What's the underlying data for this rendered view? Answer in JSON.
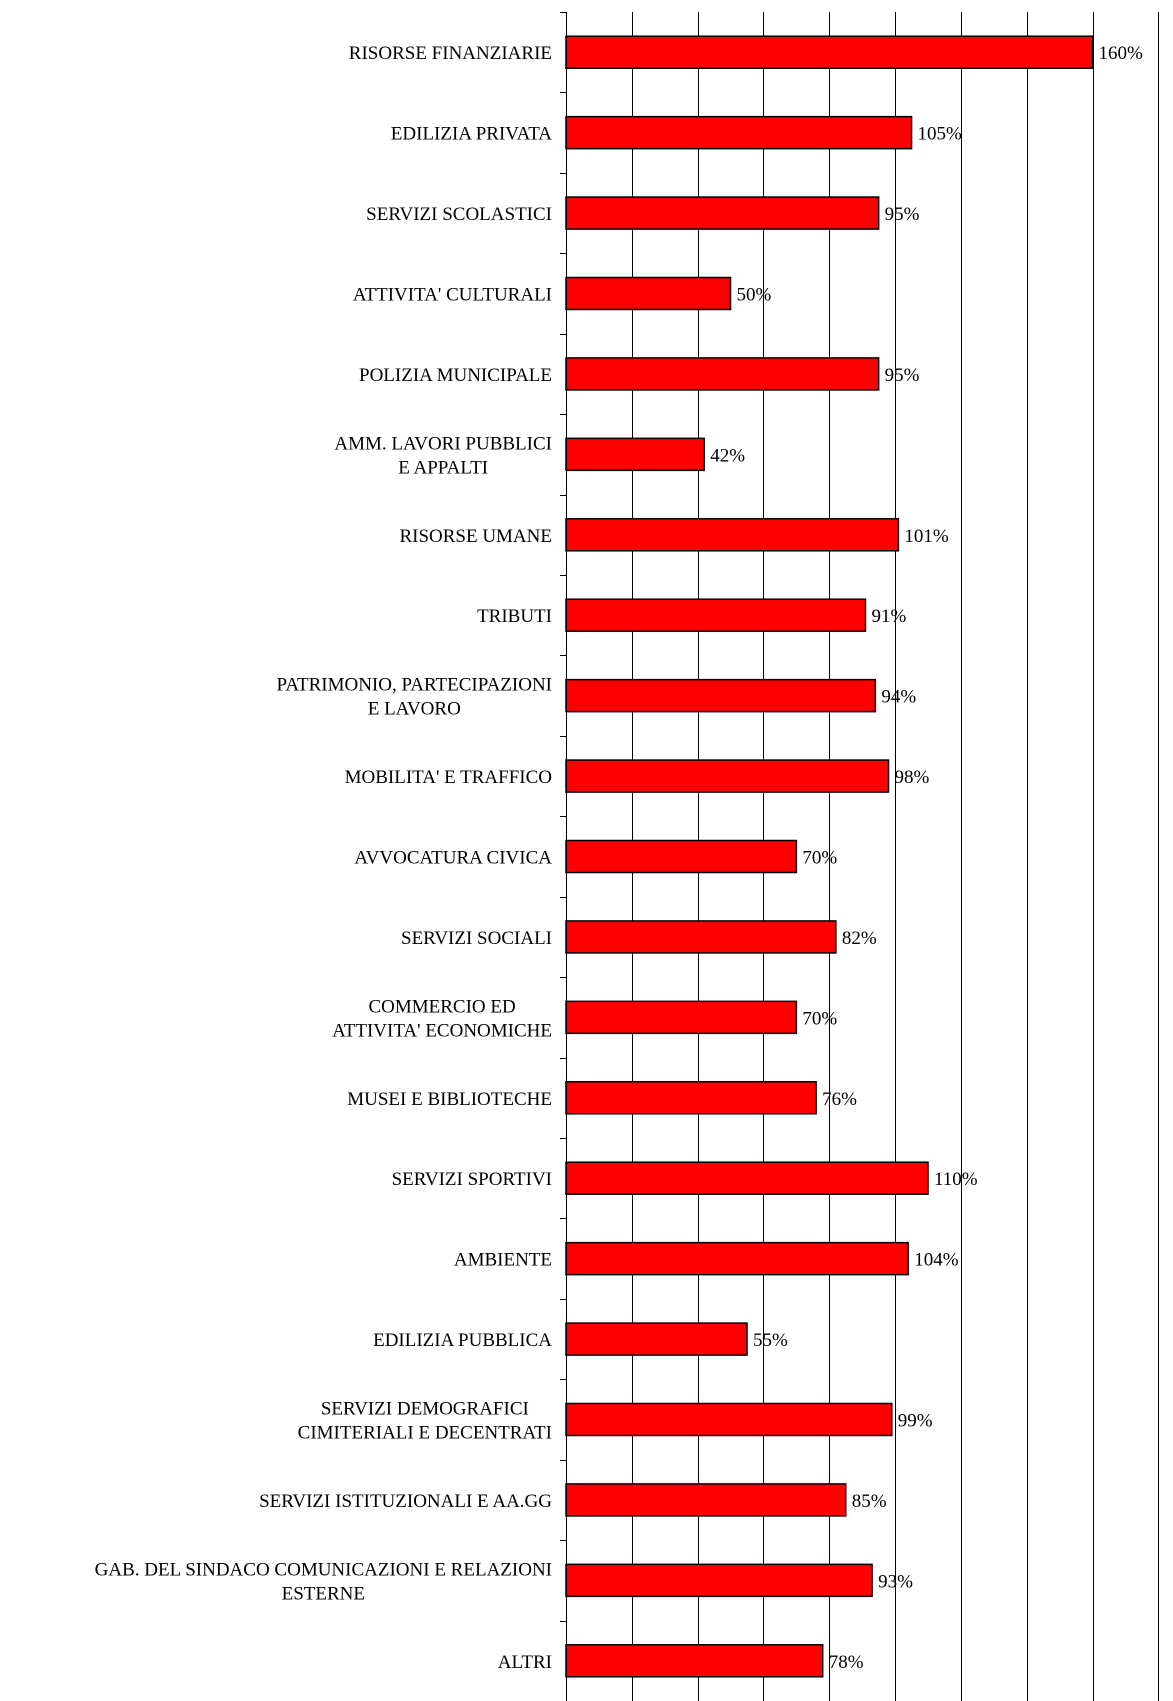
{
  "chart_data": {
    "type": "bar",
    "orientation": "horizontal",
    "categories": [
      [
        "RISORSE FINANZIARIE"
      ],
      [
        "EDILIZIA PRIVATA"
      ],
      [
        "SERVIZI SCOLASTICI"
      ],
      [
        "ATTIVITA' CULTURALI"
      ],
      [
        "POLIZIA MUNICIPALE"
      ],
      [
        "AMM. LAVORI PUBBLICI",
        "E APPALTI"
      ],
      [
        "RISORSE UMANE"
      ],
      [
        "TRIBUTI"
      ],
      [
        "PATRIMONIO, PARTECIPAZIONI",
        "E LAVORO"
      ],
      [
        "MOBILITA' E TRAFFICO"
      ],
      [
        "AVVOCATURA CIVICA"
      ],
      [
        "SERVIZI SOCIALI"
      ],
      [
        "COMMERCIO ED",
        "ATTIVITA' ECONOMICHE"
      ],
      [
        "MUSEI E BIBLIOTECHE"
      ],
      [
        "SERVIZI SPORTIVI"
      ],
      [
        "AMBIENTE"
      ],
      [
        "EDILIZIA PUBBLICA"
      ],
      [
        "SERVIZI DEMOGRAFICI",
        "CIMITERIALI E DECENTRATI"
      ],
      [
        "SERVIZI ISTITUZIONALI E AA.GG"
      ],
      [
        "GAB. DEL SINDACO COMUNICAZIONI E RELAZIONI",
        "ESTERNE"
      ],
      [
        "ALTRI"
      ]
    ],
    "values": [
      160,
      105,
      95,
      50,
      95,
      42,
      101,
      91,
      94,
      98,
      70,
      82,
      70,
      76,
      110,
      104,
      55,
      99,
      85,
      93,
      78
    ],
    "value_labels": [
      "160%",
      "105%",
      "95%",
      "50%",
      "95%",
      "42%",
      "101%",
      "91%",
      "94%",
      "98%",
      "70%",
      "82%",
      "70%",
      "76%",
      "110%",
      "104%",
      "55%",
      "99%",
      "85%",
      "93%",
      "78%"
    ],
    "xlim": [
      0,
      180
    ],
    "x_gridlines": [
      20,
      40,
      60,
      80,
      100,
      120,
      140,
      160,
      180
    ],
    "grid": true,
    "legend": "none",
    "title": "",
    "xlabel": "",
    "ylabel": "",
    "bar_color": "#ff0000",
    "bar_border_color": "#000000"
  }
}
